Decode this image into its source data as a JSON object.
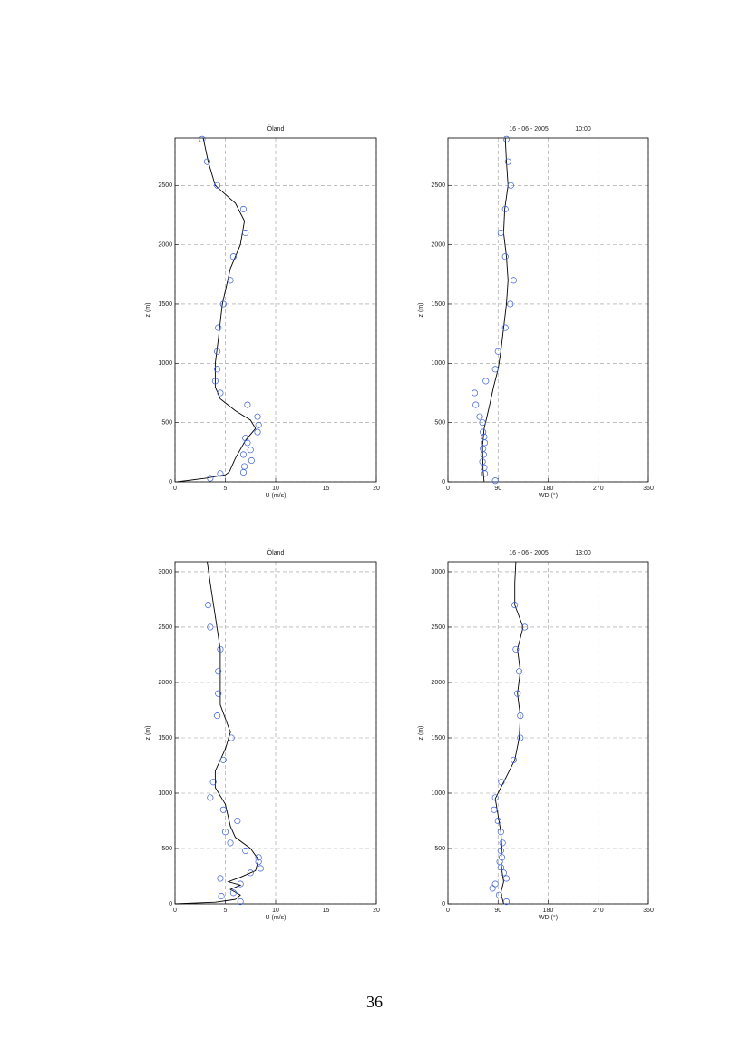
{
  "chart_data": [
    {
      "type": "profile",
      "title": "Öland",
      "xlabel": "U  (m/s)",
      "ylabel": "z  (m)",
      "xlim": [
        0,
        20
      ],
      "xticks": [
        0,
        5,
        10,
        15,
        20
      ],
      "ylim": [
        0,
        2900
      ],
      "yticks": [
        0,
        500,
        1000,
        1500,
        2000,
        2500
      ],
      "grid": true,
      "series": [
        {
          "type": "line",
          "color": "#000000",
          "x": [
            0.2,
            3,
            5,
            5.4,
            6,
            7,
            8,
            7.5,
            6,
            4.5,
            4,
            4,
            4.3,
            4.7,
            5.5,
            6.5,
            6.9,
            6,
            4,
            3.3,
            2.8
          ],
          "y": [
            0,
            30,
            60,
            84,
            200,
            350,
            450,
            520,
            600,
            700,
            800,
            1000,
            1200,
            1500,
            1800,
            2000,
            2200,
            2350,
            2500,
            2700,
            2900
          ]
        },
        {
          "type": "scatter",
          "color": "#3a5fd8",
          "x": [
            2.7,
            3.2,
            4.2,
            6.8,
            7,
            5.8,
            5.5,
            4.8,
            4.3,
            4.2,
            4.2,
            4,
            4.5,
            7.2,
            8.2,
            8.3,
            8.2,
            7,
            7.2,
            7.5,
            6.8,
            7.6,
            6.9,
            6.8,
            3.5,
            4.5
          ],
          "y": [
            2890,
            2700,
            2500,
            2300,
            2100,
            1900,
            1700,
            1500,
            1300,
            1100,
            950,
            850,
            750,
            650,
            550,
            480,
            420,
            370,
            330,
            270,
            230,
            180,
            130,
            80,
            30,
            70
          ]
        }
      ]
    },
    {
      "type": "profile",
      "title": "16 - 06 - 2005",
      "subtitle": "10:00",
      "xlabel": "WD (°)",
      "ylabel": "z  (m)",
      "xlim": [
        0,
        360
      ],
      "xticks": [
        0,
        90,
        180,
        270,
        360
      ],
      "ylim": [
        0,
        2900
      ],
      "yticks": [
        0,
        500,
        1000,
        1500,
        2000,
        2500
      ],
      "grid": true,
      "series": [
        {
          "type": "line",
          "color": "#000000",
          "x": [
            65,
            63,
            62,
            65,
            70,
            75,
            82,
            90,
            95,
            100,
            105,
            108,
            105,
            100,
            102,
            108,
            105,
            103
          ],
          "y": [
            0,
            100,
            300,
            450,
            550,
            650,
            800,
            950,
            1100,
            1300,
            1500,
            1700,
            1900,
            2100,
            2300,
            2500,
            2700,
            2900
          ]
        },
        {
          "type": "scatter",
          "color": "#3a5fd8",
          "x": [
            105,
            108,
            113,
            103,
            95,
            103,
            118,
            112,
            103,
            90,
            85,
            68,
            48,
            50,
            57,
            62,
            63,
            65,
            66,
            63,
            64,
            62,
            65,
            66,
            85
          ],
          "y": [
            2890,
            2700,
            2500,
            2300,
            2100,
            1900,
            1700,
            1500,
            1300,
            1100,
            950,
            850,
            750,
            650,
            550,
            500,
            420,
            380,
            330,
            280,
            230,
            170,
            120,
            70,
            10
          ]
        }
      ]
    },
    {
      "type": "profile",
      "title": "Öland",
      "xlabel": "U  (m/s)",
      "ylabel": "z  (m)",
      "xlim": [
        0,
        20
      ],
      "xticks": [
        0,
        5,
        10,
        15,
        20
      ],
      "ylim": [
        0,
        3090
      ],
      "yticks": [
        0,
        500,
        1000,
        1500,
        2000,
        2500,
        3000
      ],
      "grid": true,
      "series": [
        {
          "type": "line",
          "color": "#000000",
          "x": [
            0,
            4,
            6,
            6.5,
            5.5,
            6.5,
            5.3,
            6.5,
            8,
            8.3,
            7.5,
            6,
            5.5,
            5,
            4,
            4,
            5,
            5.5,
            4.5,
            4.5,
            4.5,
            4,
            3.5,
            3.2
          ],
          "y": [
            0,
            15,
            40,
            80,
            130,
            170,
            200,
            240,
            300,
            400,
            500,
            600,
            700,
            900,
            1050,
            1200,
            1400,
            1550,
            1800,
            2000,
            2300,
            2600,
            2900,
            3090
          ]
        },
        {
          "type": "scatter",
          "color": "#3a5fd8",
          "x": [
            3.3,
            3.5,
            4.5,
            4.3,
            4.3,
            4.2,
            5.6,
            4.8,
            3.8,
            3.5,
            4.8,
            6.2,
            5,
            5.5,
            7,
            8.3,
            8.3,
            8.5,
            7.5,
            6.5,
            4.5,
            5.8,
            4.6,
            6.5
          ],
          "y": [
            2700,
            2500,
            2300,
            2100,
            1900,
            1700,
            1500,
            1300,
            1100,
            960,
            850,
            750,
            650,
            550,
            480,
            420,
            380,
            320,
            280,
            180,
            230,
            100,
            70,
            20
          ]
        }
      ]
    },
    {
      "type": "profile",
      "title": "16 - 06 - 2005",
      "subtitle": "13:00",
      "xlabel": "WD (°)",
      "ylabel": "z  (m)",
      "xlim": [
        0,
        360
      ],
      "xticks": [
        0,
        90,
        180,
        270,
        360
      ],
      "ylim": [
        0,
        3090
      ],
      "yticks": [
        0,
        500,
        1000,
        1500,
        2000,
        2500,
        3000
      ],
      "grid": true,
      "series": [
        {
          "type": "line",
          "color": "#000000",
          "x": [
            100,
            95,
            100,
            97,
            95,
            97,
            95,
            90,
            85,
            100,
            120,
            128,
            130,
            125,
            130,
            125,
            135,
            120,
            120,
            122
          ],
          "y": [
            0,
            100,
            200,
            300,
            400,
            500,
            650,
            800,
            950,
            1100,
            1300,
            1500,
            1700,
            1900,
            2100,
            2300,
            2500,
            2700,
            2900,
            3090
          ]
        },
        {
          "type": "scatter",
          "color": "#3a5fd8",
          "x": [
            120,
            138,
            122,
            128,
            125,
            130,
            130,
            118,
            96,
            85,
            83,
            90,
            95,
            98,
            95,
            97,
            93,
            95,
            100,
            105,
            85,
            80,
            92,
            105
          ],
          "y": [
            2700,
            2500,
            2300,
            2100,
            1900,
            1700,
            1500,
            1300,
            1100,
            960,
            850,
            750,
            650,
            550,
            480,
            420,
            380,
            330,
            280,
            230,
            180,
            140,
            80,
            20
          ]
        }
      ]
    }
  ],
  "page_number": "36"
}
